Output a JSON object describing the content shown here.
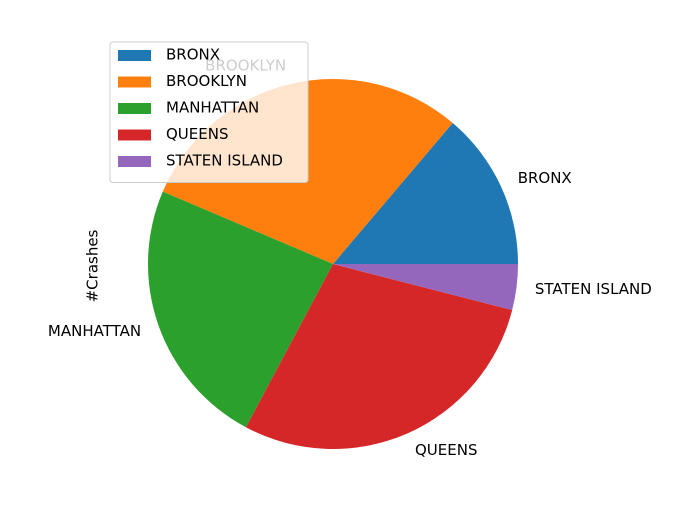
{
  "chart_data": {
    "type": "pie",
    "title": "",
    "ylabel": "#Crashes",
    "categories": [
      "BRONX",
      "BROOKLYN",
      "MANHATTAN",
      "QUEENS",
      "STATEN ISLAND"
    ],
    "values": [
      13.8,
      29.8,
      23.6,
      28.8,
      4.0
    ],
    "colors": [
      "#1f77b4",
      "#ff7f0e",
      "#2ca02c",
      "#d62728",
      "#9467bd"
    ],
    "start_angle": 0,
    "direction": "counterclockwise",
    "legend": {
      "placement": "upper-left",
      "entries": [
        "BRONX",
        "BROOKLYN",
        "MANHATTAN",
        "QUEENS",
        "STATEN ISLAND"
      ]
    }
  }
}
